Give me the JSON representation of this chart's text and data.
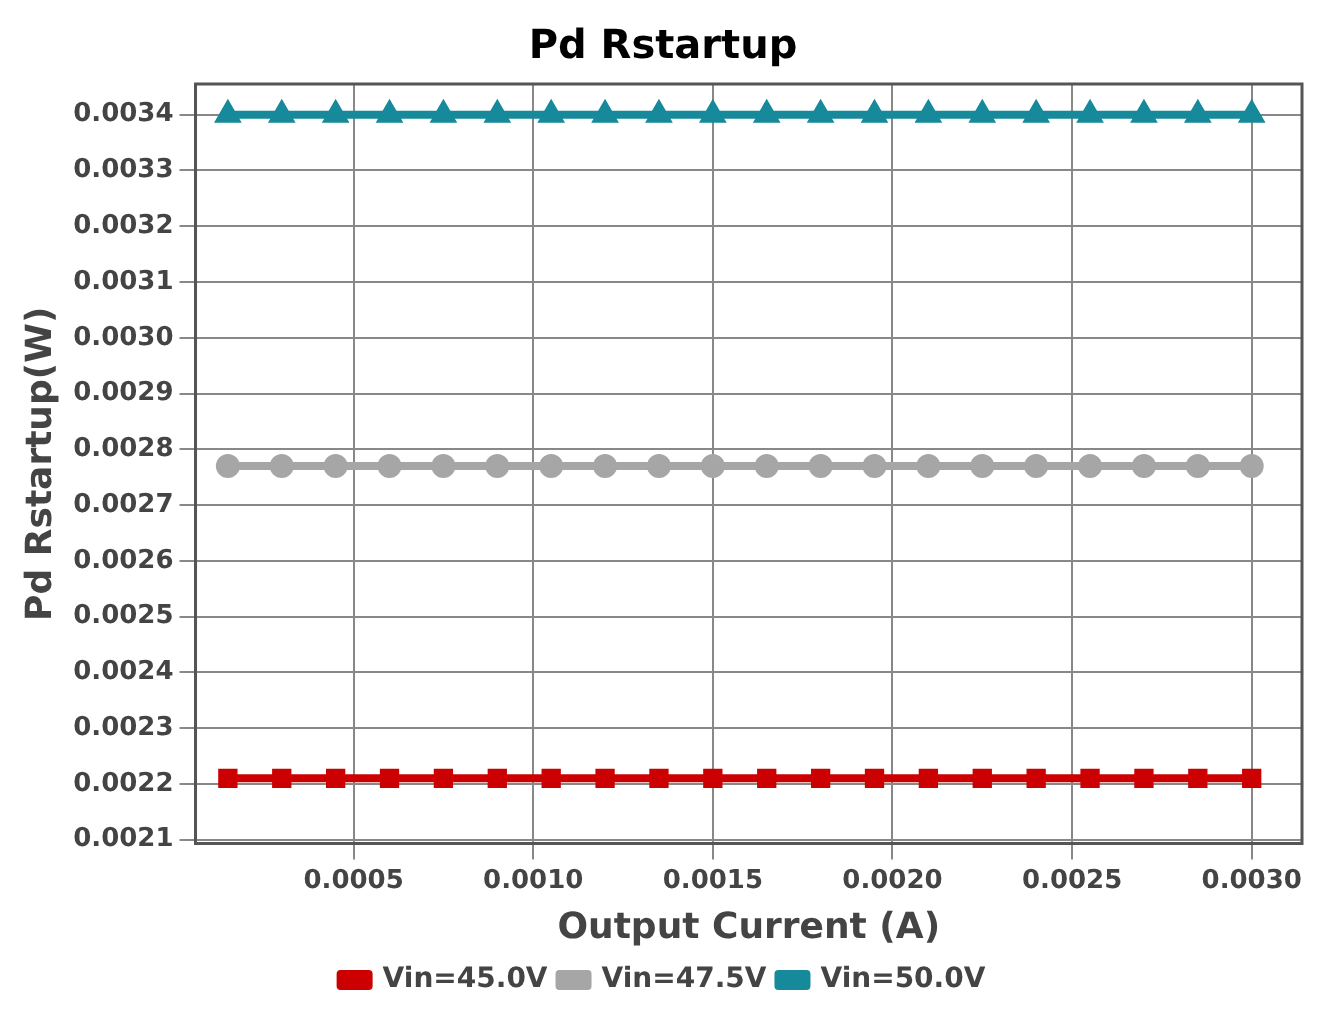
{
  "chart_data": {
    "type": "line",
    "title": "Pd Rstartup",
    "xlabel": "Output Current (A)",
    "ylabel": "Pd Rstartup(W)",
    "x": [
      0.00015,
      0.0003,
      0.00045,
      0.0006,
      0.00075,
      0.0009,
      0.00105,
      0.0012,
      0.00135,
      0.0015,
      0.00165,
      0.0018,
      0.00195,
      0.0021,
      0.00225,
      0.0024,
      0.00255,
      0.0027,
      0.00285,
      0.003
    ],
    "series": [
      {
        "name": "Vin=45.0V",
        "color": "#cc0000",
        "marker": "square",
        "values": [
          0.00221,
          0.00221,
          0.00221,
          0.00221,
          0.00221,
          0.00221,
          0.00221,
          0.00221,
          0.00221,
          0.00221,
          0.00221,
          0.00221,
          0.00221,
          0.00221,
          0.00221,
          0.00221,
          0.00221,
          0.00221,
          0.00221,
          0.00221
        ]
      },
      {
        "name": "Vin=47.5V",
        "color": "#a6a6a6",
        "marker": "circle",
        "values": [
          0.00277,
          0.00277,
          0.00277,
          0.00277,
          0.00277,
          0.00277,
          0.00277,
          0.00277,
          0.00277,
          0.00277,
          0.00277,
          0.00277,
          0.00277,
          0.00277,
          0.00277,
          0.00277,
          0.00277,
          0.00277,
          0.00277,
          0.00277
        ]
      },
      {
        "name": "Vin=50.0V",
        "color": "#16899a",
        "marker": "triangle",
        "values": [
          0.0034,
          0.0034,
          0.0034,
          0.0034,
          0.0034,
          0.0034,
          0.0034,
          0.0034,
          0.0034,
          0.0034,
          0.0034,
          0.0034,
          0.0034,
          0.0034,
          0.0034,
          0.0034,
          0.0034,
          0.0034,
          0.0034,
          0.0034
        ]
      }
    ],
    "xlim": [
      6e-05,
      0.00314
    ],
    "xticks": [
      {
        "value": 0.0005,
        "label": "0.0005"
      },
      {
        "value": 0.001,
        "label": "0.0010"
      },
      {
        "value": 0.0015,
        "label": "0.0015"
      },
      {
        "value": 0.002,
        "label": "0.0020"
      },
      {
        "value": 0.0025,
        "label": "0.0025"
      },
      {
        "value": 0.003,
        "label": "0.0030"
      }
    ],
    "ylim": [
      0.002093,
      0.003455
    ],
    "yticks": [
      0.0021,
      0.0022,
      0.0023,
      0.0024,
      0.0025,
      0.0026,
      0.0027,
      0.0028,
      0.0029,
      {
        "value": 0.003,
        "label": "0.0030"
      },
      0.0031,
      0.0032,
      0.0033,
      0.0034
    ],
    "grid": true,
    "legend": "bottom",
    "line_style": "solid"
  }
}
